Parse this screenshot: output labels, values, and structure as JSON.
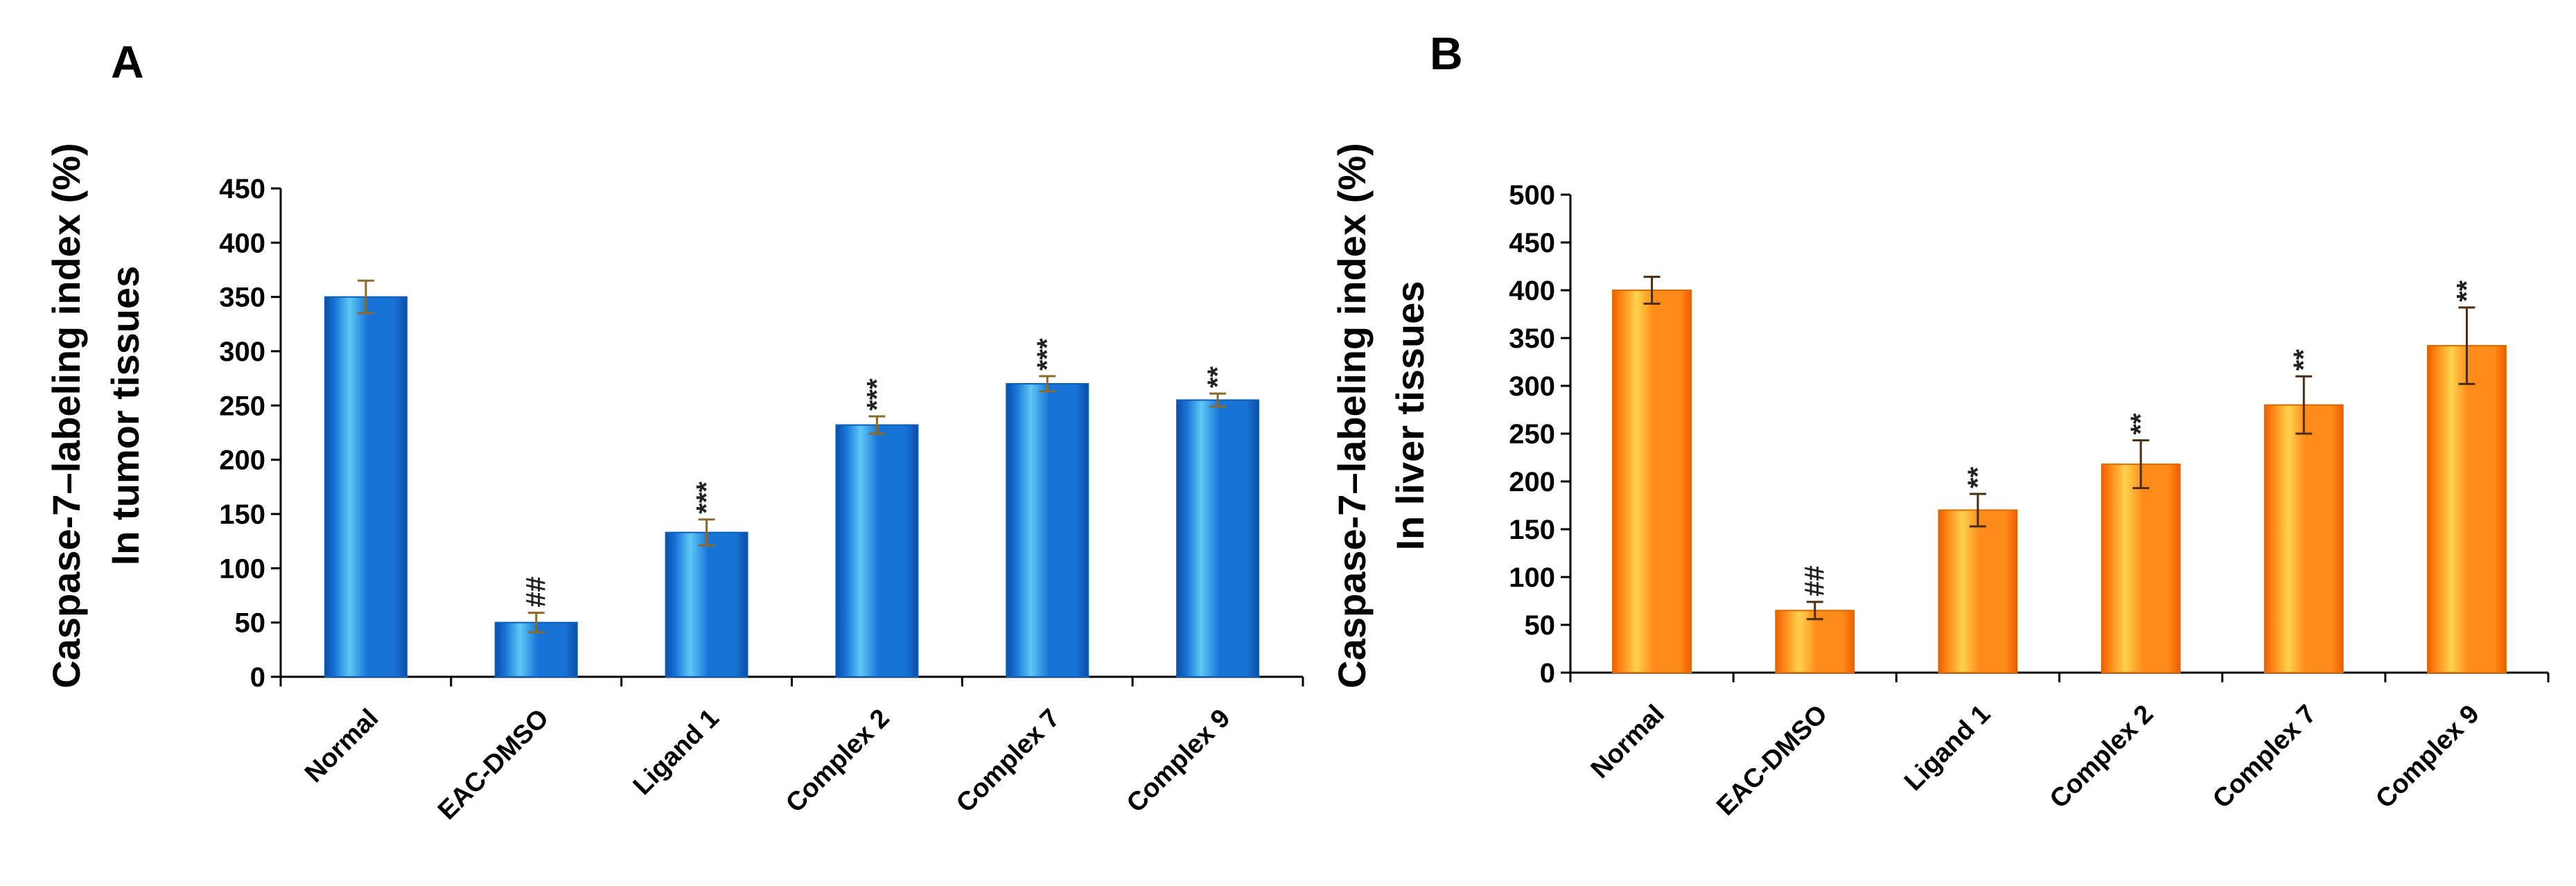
{
  "chart_data": [
    {
      "panel": "A",
      "type": "bar",
      "ylabel_line1": "Caspase-7–labeling index (%)",
      "ylabel_line2": "In tumor tissues",
      "categories": [
        "Normal",
        "EAC-DMSO",
        "Ligand 1",
        "Complex 2",
        "Complex 7",
        "Complex 9"
      ],
      "values": [
        350,
        50,
        133,
        232,
        270,
        255
      ],
      "errors": [
        15,
        9,
        12,
        8,
        7,
        6
      ],
      "significance": [
        "",
        "##",
        "***",
        "***",
        "***",
        "**"
      ],
      "ylim": [
        0,
        450
      ],
      "yticks": [
        0,
        50,
        100,
        150,
        200,
        250,
        300,
        350,
        400,
        450
      ],
      "colors": {
        "bar_light": "#5ec8f5",
        "bar_main": "#1873d6",
        "bar_dark": "#0a4ea6",
        "bar_edge": "#0b5fb8",
        "error_bar": "#8a6a2a"
      }
    },
    {
      "panel": "B",
      "type": "bar",
      "ylabel_line1": "Caspase-7–labeling index (%)",
      "ylabel_line2": "In liver tissues",
      "categories": [
        "Normal",
        "EAC-DMSO",
        "Ligand 1",
        "Complex 2",
        "Complex 7",
        "Complex 9"
      ],
      "values": [
        400,
        65,
        170,
        218,
        280,
        342
      ],
      "errors": [
        14,
        9,
        17,
        25,
        30,
        40
      ],
      "significance": [
        "",
        "##",
        "**",
        "**",
        "**",
        "**"
      ],
      "ylim": [
        0,
        500
      ],
      "yticks": [
        0,
        50,
        100,
        150,
        200,
        250,
        300,
        350,
        400,
        450,
        500
      ],
      "colors": {
        "bar_light": "#ffd24d",
        "bar_main": "#ff8c1a",
        "bar_dark": "#ee5e00",
        "bar_edge": "#d96a00",
        "error_bar": "#4a2d10"
      }
    }
  ]
}
